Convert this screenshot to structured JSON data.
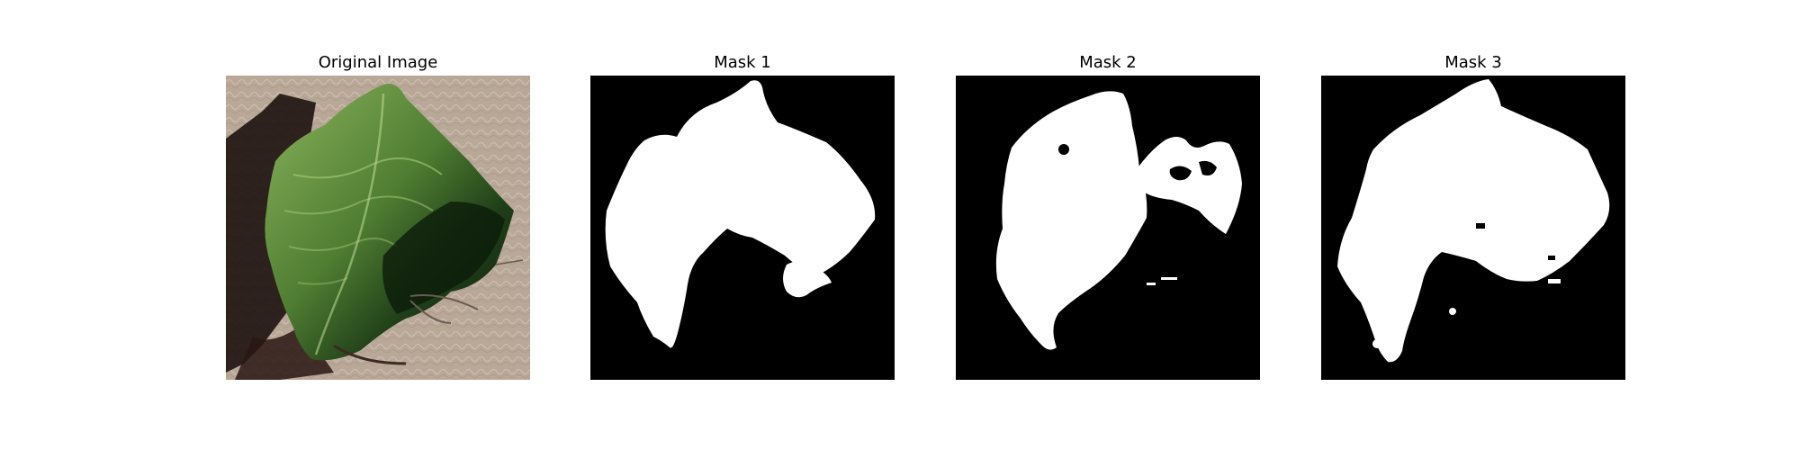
{
  "figure": {
    "panels": [
      {
        "title": "Original Image",
        "kind": "photo"
      },
      {
        "title": "Mask 1",
        "kind": "mask"
      },
      {
        "title": "Mask 2",
        "kind": "mask"
      },
      {
        "title": "Mask 3",
        "kind": "mask"
      }
    ],
    "colors": {
      "mask_background": "#000000",
      "mask_foreground": "#ffffff",
      "photo_background": "#b8a697",
      "leaf_light": "#6e9a46",
      "leaf_dark": "#1c3a16"
    }
  }
}
